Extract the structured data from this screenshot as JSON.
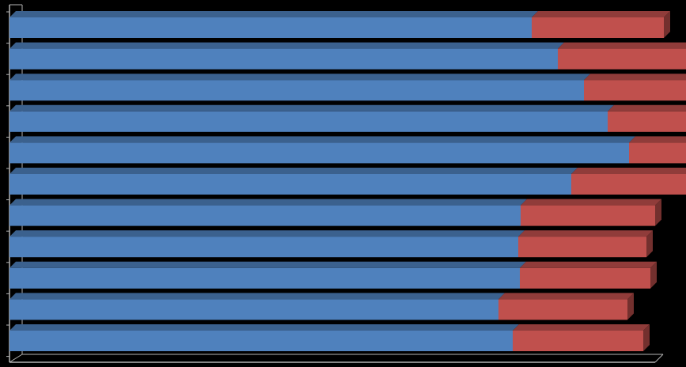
{
  "chart_data": {
    "type": "bar",
    "orientation": "horizontal",
    "stacked": true,
    "three_d": true,
    "title": "",
    "xlabel": "",
    "ylabel": "",
    "categories": [
      "",
      "",
      "",
      "",
      "",
      "",
      "",
      "",
      "",
      "",
      ""
    ],
    "xlim": [
      0,
      100
    ],
    "grid": false,
    "legend": "none",
    "series": [
      {
        "color": "#4f81bd",
        "values": [
          66.0,
          69.3,
          72.6,
          75.6,
          78.3,
          71.0,
          64.6,
          64.3,
          64.5,
          61.8,
          63.6
        ]
      },
      {
        "color": "#c0504d",
        "values": [
          16.7,
          19.4,
          19.7,
          20.0,
          20.6,
          18.7,
          17.0,
          16.2,
          16.5,
          16.3,
          16.5
        ]
      }
    ],
    "colors": {
      "background": "#000000",
      "axis_wall": "#b3b3b3"
    }
  }
}
